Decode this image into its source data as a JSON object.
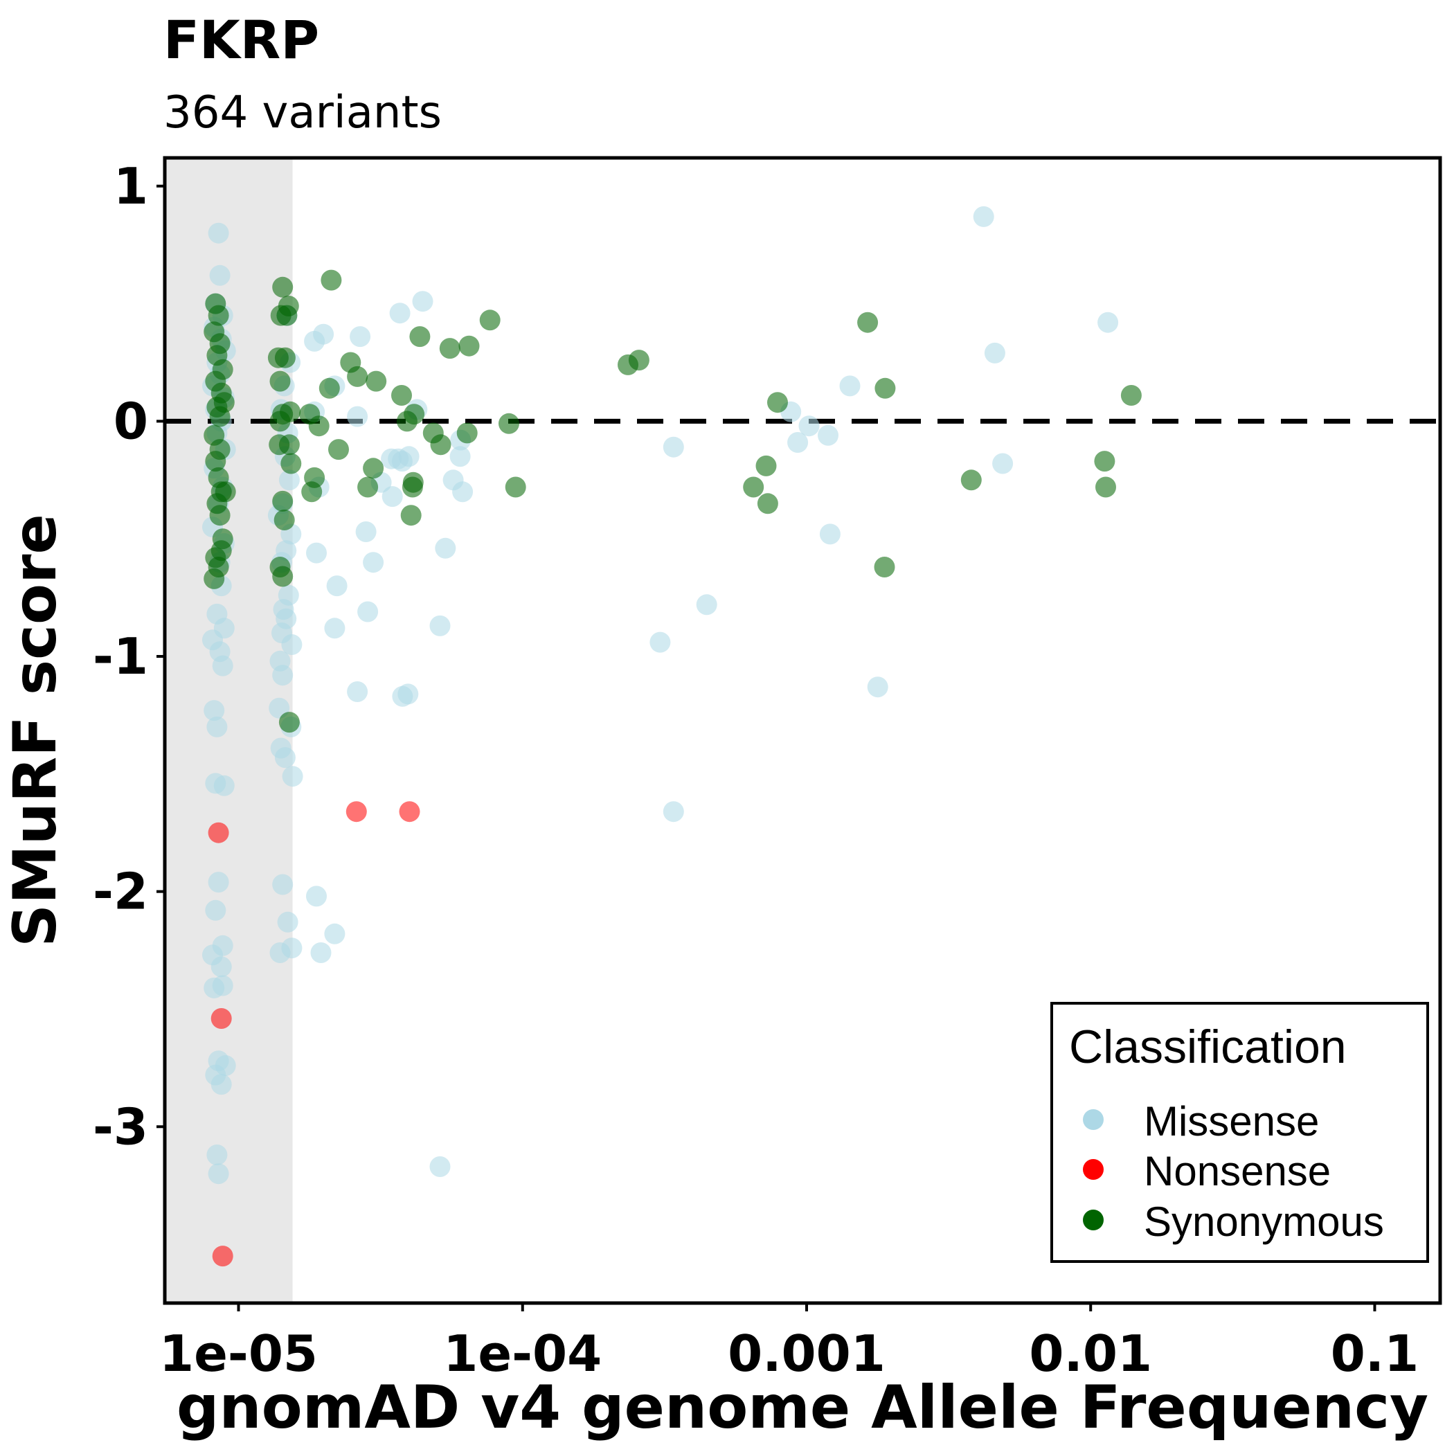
{
  "chart_data": {
    "type": "scatter",
    "title": "FKRP",
    "subtitle": "364 variants",
    "xlabel": "gnomAD v4 genome Allele Frequency",
    "ylabel": "SMuRF score",
    "x_scale": "log10",
    "xlim": [
      5.5e-06,
      0.17
    ],
    "ylim": [
      -3.75,
      1.12
    ],
    "x_ticks": [
      {
        "value": 1e-05,
        "label": "1e-05"
      },
      {
        "value": 0.0001,
        "label": "1e-04"
      },
      {
        "value": 0.001,
        "label": "0.001"
      },
      {
        "value": 0.01,
        "label": "0.01"
      },
      {
        "value": 0.1,
        "label": "0.1"
      }
    ],
    "y_ticks": [
      {
        "value": 1,
        "label": "1"
      },
      {
        "value": 0,
        "label": "0"
      },
      {
        "value": -1,
        "label": "-1"
      },
      {
        "value": -2,
        "label": "-2"
      },
      {
        "value": -3,
        "label": "-3"
      }
    ],
    "reference_line_y": 0,
    "shaded_region_x": [
      5.5e-06,
      1.55e-05
    ],
    "grid": false,
    "legend": {
      "title": "Classification",
      "position": "bottom-right",
      "entries": [
        {
          "label": "Missense",
          "color": "#add8e6"
        },
        {
          "label": "Nonsense",
          "color": "#ff0000"
        },
        {
          "label": "Synonymous",
          "color": "#006400"
        }
      ]
    },
    "series": [
      {
        "name": "Missense",
        "color": "#add8e6",
        "points": [
          [
            8.5e-06,
            0.8
          ],
          [
            8.6e-06,
            0.62
          ],
          [
            8.3e-06,
            0.5
          ],
          [
            8.8e-06,
            0.45
          ],
          [
            8.2e-06,
            0.4
          ],
          [
            8.7e-06,
            0.35
          ],
          [
            9e-06,
            0.3
          ],
          [
            8.4e-06,
            0.25
          ],
          [
            8.6e-06,
            0.2
          ],
          [
            8.1e-06,
            0.15
          ],
          [
            8.9e-06,
            0.1
          ],
          [
            8.3e-06,
            0.05
          ],
          [
            8.7e-06,
            0
          ],
          [
            8.4e-06,
            -0.05
          ],
          [
            9e-06,
            -0.12
          ],
          [
            8.2e-06,
            -0.2
          ],
          [
            8.8e-06,
            -0.28
          ],
          [
            8.5e-06,
            -0.35
          ],
          [
            8.1e-06,
            -0.45
          ],
          [
            8.9e-06,
            -0.52
          ],
          [
            8.6e-06,
            -0.6
          ],
          [
            8.7e-06,
            -0.7
          ],
          [
            8.4e-06,
            -0.82
          ],
          [
            8.9e-06,
            -0.88
          ],
          [
            8.1e-06,
            -0.93
          ],
          [
            8.6e-06,
            -0.98
          ],
          [
            8.8e-06,
            -1.04
          ],
          [
            8.2e-06,
            -1.23
          ],
          [
            8.4e-06,
            -1.3
          ],
          [
            8.3e-06,
            -1.54
          ],
          [
            8.9e-06,
            -1.55
          ],
          [
            8.5e-06,
            -1.96
          ],
          [
            8.3e-06,
            -2.08
          ],
          [
            8.8e-06,
            -2.23
          ],
          [
            8.1e-06,
            -2.27
          ],
          [
            8.7e-06,
            -2.32
          ],
          [
            8.2e-06,
            -2.41
          ],
          [
            8.8e-06,
            -2.4
          ],
          [
            8.5e-06,
            -2.72
          ],
          [
            9e-06,
            -2.74
          ],
          [
            8.3e-06,
            -2.78
          ],
          [
            8.7e-06,
            -2.82
          ],
          [
            8.4e-06,
            -3.12
          ],
          [
            8.5e-06,
            -3.2
          ],
          [
            1.48e-05,
            0.45
          ],
          [
            1.52e-05,
            0.25
          ],
          [
            1.45e-05,
            0.15
          ],
          [
            1.41e-05,
            0.05
          ],
          [
            1.49e-05,
            -0.05
          ],
          [
            1.46e-05,
            -0.15
          ],
          [
            1.51e-05,
            -0.25
          ],
          [
            1.43e-05,
            -0.35
          ],
          [
            1.38e-05,
            -0.4
          ],
          [
            1.53e-05,
            -0.48
          ],
          [
            1.47e-05,
            -0.55
          ],
          [
            1.42e-05,
            -0.6
          ],
          [
            1.5e-05,
            -0.74
          ],
          [
            1.44e-05,
            -0.8
          ],
          [
            1.47e-05,
            -0.84
          ],
          [
            1.42e-05,
            -0.9
          ],
          [
            1.54e-05,
            -0.95
          ],
          [
            1.4e-05,
            -1.02
          ],
          [
            1.43e-05,
            -1.08
          ],
          [
            1.39e-05,
            -1.22
          ],
          [
            1.53e-05,
            -1.3
          ],
          [
            1.41e-05,
            -1.39
          ],
          [
            1.46e-05,
            -1.43
          ],
          [
            1.55e-05,
            -1.51
          ],
          [
            1.43e-05,
            -1.97
          ],
          [
            1.49e-05,
            -2.13
          ],
          [
            1.4e-05,
            -2.26
          ],
          [
            1.54e-05,
            -2.24
          ],
          [
            1.85e-05,
            0.34
          ],
          [
            1.99e-05,
            0.37
          ],
          [
            1.85e-05,
            0.04
          ],
          [
            1.92e-05,
            -0.28
          ],
          [
            1.88e-05,
            -0.56
          ],
          [
            2.18e-05,
            0.15
          ],
          [
            1.95e-05,
            -2.26
          ],
          [
            2.18e-05,
            -2.18
          ],
          [
            2.18e-05,
            -0.88
          ],
          [
            2.22e-05,
            -0.7
          ],
          [
            2.68e-05,
            0.36
          ],
          [
            2.62e-05,
            0.02
          ],
          [
            2.81e-05,
            -0.47
          ],
          [
            2.85e-05,
            -0.81
          ],
          [
            2.98e-05,
            -0.6
          ],
          [
            2.62e-05,
            -1.15
          ],
          [
            1.88e-05,
            -2.02
          ],
          [
            3.18e-05,
            -0.26
          ],
          [
            3.45e-05,
            -0.16
          ],
          [
            3.48e-05,
            -0.32
          ],
          [
            3.65e-05,
            -0.16
          ],
          [
            3.77e-05,
            -0.17
          ],
          [
            3.98e-05,
            -0.15
          ],
          [
            3.95e-05,
            -1.16
          ],
          [
            4.25e-05,
            0.05
          ],
          [
            3.7e-05,
            0.46
          ],
          [
            3.78e-05,
            -1.17
          ],
          [
            4.45e-05,
            0.51
          ],
          [
            5.12e-05,
            -0.87
          ],
          [
            5.35e-05,
            -0.54
          ],
          [
            5.7e-05,
            -0.25
          ],
          [
            6.05e-05,
            -0.08
          ],
          [
            6.03e-05,
            -0.15
          ],
          [
            6.15e-05,
            -0.3
          ],
          [
            5.12e-05,
            -3.17
          ],
          [
            0.00034,
            -0.11
          ],
          [
            0.000305,
            -0.94
          ],
          [
            0.00034,
            -1.66
          ],
          [
            0.000445,
            -0.78
          ],
          [
            0.00088,
            0.04
          ],
          [
            0.00093,
            -0.09
          ],
          [
            0.00102,
            -0.02
          ],
          [
            0.00119,
            -0.06
          ],
          [
            0.00121,
            -0.48
          ],
          [
            0.00142,
            0.15
          ],
          [
            0.00178,
            -1.13
          ],
          [
            0.0042,
            0.87
          ],
          [
            0.0046,
            0.29
          ],
          [
            0.0049,
            -0.18
          ],
          [
            0.0115,
            0.42
          ]
        ]
      },
      {
        "name": "Nonsense",
        "color": "#ff0000",
        "points": [
          [
            8.5e-06,
            -1.75
          ],
          [
            8.7e-06,
            -2.54
          ],
          [
            8.8e-06,
            -3.55
          ],
          [
            2.6e-05,
            -1.66
          ],
          [
            4e-05,
            -1.66
          ]
        ]
      },
      {
        "name": "Synonymous",
        "color": "#006400",
        "points": [
          [
            8.3e-06,
            0.5
          ],
          [
            8.5e-06,
            0.45
          ],
          [
            8.2e-06,
            0.38
          ],
          [
            8.6e-06,
            0.33
          ],
          [
            8.4e-06,
            0.28
          ],
          [
            8.8e-06,
            0.22
          ],
          [
            8.3e-06,
            0.17
          ],
          [
            8.7e-06,
            0.12
          ],
          [
            8.4e-06,
            0.06
          ],
          [
            8.6e-06,
            0.02
          ],
          [
            8.2e-06,
            -0.06
          ],
          [
            8.6e-06,
            -0.12
          ],
          [
            8.3e-06,
            -0.17
          ],
          [
            8.5e-06,
            -0.24
          ],
          [
            8.7e-06,
            -0.3
          ],
          [
            8.4e-06,
            -0.35
          ],
          [
            8.6e-06,
            -0.4
          ],
          [
            8.8e-06,
            -0.5
          ],
          [
            8.3e-06,
            -0.58
          ],
          [
            8.5e-06,
            -0.62
          ],
          [
            8.2e-06,
            -0.67
          ],
          [
            8.7e-06,
            -0.55
          ],
          [
            9e-06,
            -0.3
          ],
          [
            8.9e-06,
            0.08
          ],
          [
            1.43e-05,
            0.57
          ],
          [
            1.41e-05,
            0.45
          ],
          [
            1.38e-05,
            0.27
          ],
          [
            1.4e-05,
            0.17
          ],
          [
            1.43e-05,
            0.03
          ],
          [
            1.46e-05,
            0.27
          ],
          [
            1.4e-05,
            0.0
          ],
          [
            1.39e-05,
            -0.1
          ],
          [
            1.43e-05,
            -0.34
          ],
          [
            1.45e-05,
            -0.42
          ],
          [
            1.4e-05,
            -0.62
          ],
          [
            1.43e-05,
            -0.66
          ],
          [
            1.51e-05,
            -1.28
          ],
          [
            1.5e-05,
            0.49
          ],
          [
            1.51e-05,
            -0.1
          ],
          [
            1.53e-05,
            -0.18
          ],
          [
            1.52e-05,
            0.04
          ],
          [
            1.48e-05,
            0.45
          ],
          [
            1.78e-05,
            0.03
          ],
          [
            1.85e-05,
            -0.24
          ],
          [
            1.81e-05,
            -0.3
          ],
          [
            1.92e-05,
            -0.02
          ],
          [
            2.12e-05,
            0.6
          ],
          [
            2.09e-05,
            0.14
          ],
          [
            2.25e-05,
            -0.12
          ],
          [
            2.48e-05,
            0.25
          ],
          [
            2.62e-05,
            0.19
          ],
          [
            2.85e-05,
            -0.28
          ],
          [
            3.05e-05,
            0.17
          ],
          [
            2.98e-05,
            -0.2
          ],
          [
            3.75e-05,
            0.11
          ],
          [
            3.92e-05,
            0.0
          ],
          [
            4.12e-05,
            -0.26
          ],
          [
            4.05e-05,
            -0.4
          ],
          [
            4.1e-05,
            -0.28
          ],
          [
            4.15e-05,
            0.03
          ],
          [
            4.35e-05,
            0.36
          ],
          [
            4.85e-05,
            -0.05
          ],
          [
            5.15e-05,
            -0.1
          ],
          [
            5.55e-05,
            0.31
          ],
          [
            6.48e-05,
            0.32
          ],
          [
            6.38e-05,
            -0.05
          ],
          [
            7.68e-05,
            0.43
          ],
          [
            8.95e-05,
            -0.01
          ],
          [
            9.45e-05,
            -0.28
          ],
          [
            0.000235,
            0.24
          ],
          [
            0.000257,
            0.26
          ],
          [
            0.00065,
            -0.28
          ],
          [
            0.00072,
            -0.19
          ],
          [
            0.00073,
            -0.35
          ],
          [
            0.00079,
            0.08
          ],
          [
            0.00164,
            0.42
          ],
          [
            0.00188,
            -0.62
          ],
          [
            0.00189,
            0.14
          ],
          [
            0.0038,
            -0.25
          ],
          [
            0.0113,
            -0.28
          ],
          [
            0.0112,
            -0.17
          ],
          [
            0.0139,
            0.11
          ]
        ]
      }
    ]
  }
}
